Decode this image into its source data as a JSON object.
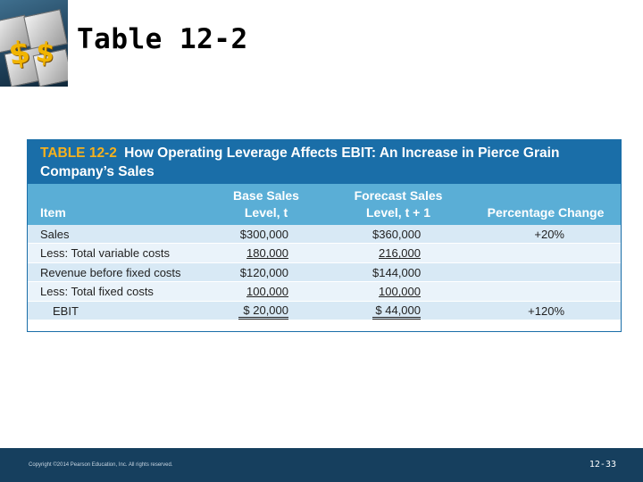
{
  "slide": {
    "title": "Table 12-2",
    "footer_copyright": "Copyright ©2014 Pearson Education, Inc. All rights reserved.",
    "page_number": "12-33",
    "logo_glyph": "$"
  },
  "table": {
    "number": "TABLE 12-2",
    "title": "How Operating Leverage Affects EBIT: An Increase in Pierce Grain Company’s Sales",
    "headers": {
      "item": "Item",
      "base_line1": "Base Sales",
      "base_line2": "Level, t",
      "forecast_line1": "Forecast Sales",
      "forecast_line2": "Level, t + 1",
      "percentage": "Percentage Change"
    },
    "rows": [
      {
        "label": "Sales",
        "base": "$300,000",
        "forecast": "$360,000",
        "pct": "+20%"
      },
      {
        "label": "Less: Total variable costs",
        "base": "180,000",
        "forecast": "216,000",
        "pct": ""
      },
      {
        "label": "Revenue before fixed costs",
        "base": "$120,000",
        "forecast": "$144,000",
        "pct": ""
      },
      {
        "label": "Less: Total fixed costs",
        "base": "100,000",
        "forecast": "100,000",
        "pct": ""
      },
      {
        "label": "EBIT",
        "base": "$ 20,000",
        "forecast": "$ 44,000",
        "pct": "+120%"
      }
    ]
  },
  "colors": {
    "banner": "#1a6ea8",
    "header": "#5aaed6",
    "table_number": "#f5b11e",
    "footer": "#163f5e"
  }
}
